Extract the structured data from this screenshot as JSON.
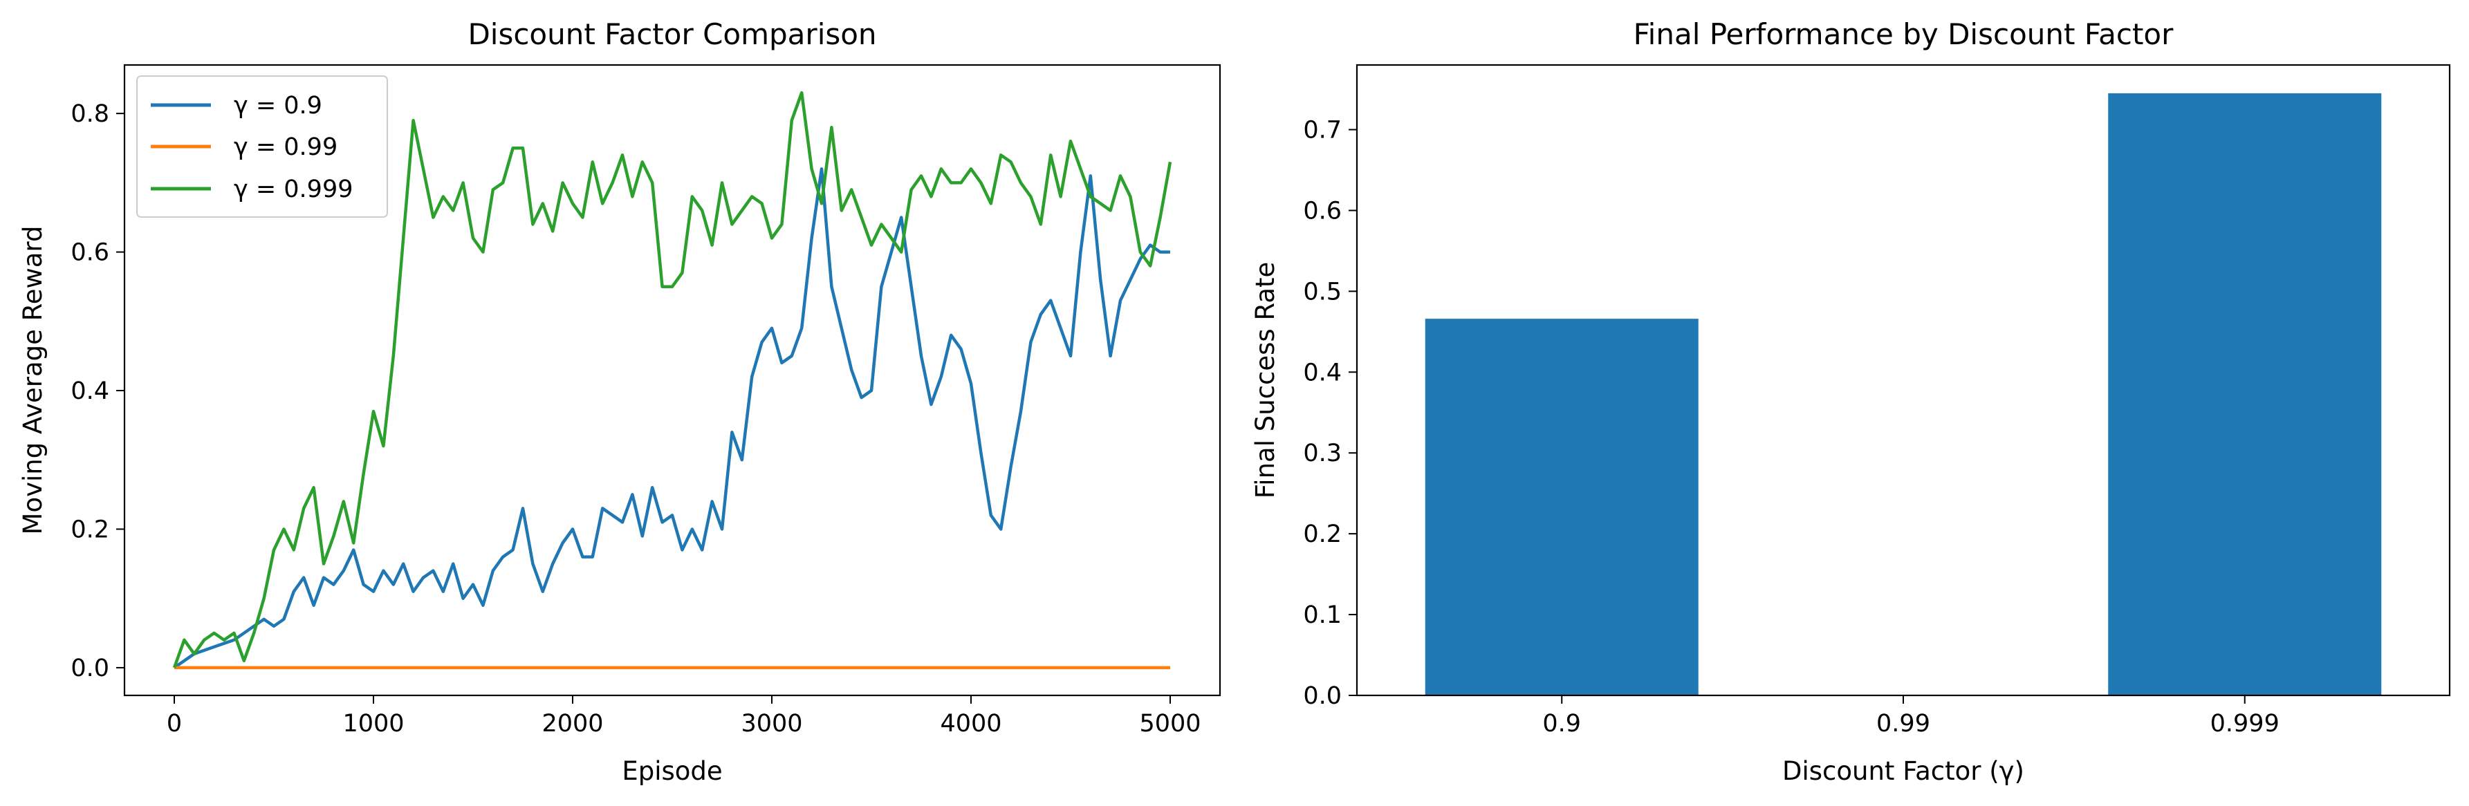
{
  "chart_data": [
    {
      "type": "line",
      "title": "Discount Factor Comparison",
      "xlabel": "Episode",
      "ylabel": "Moving Average Reward",
      "xlim": [
        -250,
        5250
      ],
      "ylim": [
        -0.04,
        0.87
      ],
      "x_ticks": [
        0,
        1000,
        2000,
        3000,
        4000,
        5000
      ],
      "x_tick_labels": [
        "0",
        "1000",
        "2000",
        "3000",
        "4000",
        "5000"
      ],
      "y_ticks": [
        0.0,
        0.2,
        0.4,
        0.6,
        0.8
      ],
      "y_tick_labels": [
        "0.0",
        "0.2",
        "0.4",
        "0.6",
        "0.8"
      ],
      "grid": false,
      "legend_position": "upper-left",
      "series": [
        {
          "name": "γ = 0.9",
          "color": "#1f77b4",
          "x": [
            0,
            100,
            200,
            300,
            400,
            450,
            500,
            550,
            600,
            650,
            700,
            750,
            800,
            850,
            900,
            950,
            1000,
            1050,
            1100,
            1150,
            1200,
            1250,
            1300,
            1350,
            1400,
            1450,
            1500,
            1550,
            1600,
            1650,
            1700,
            1750,
            1800,
            1850,
            1900,
            1950,
            2000,
            2050,
            2100,
            2150,
            2200,
            2250,
            2300,
            2350,
            2400,
            2450,
            2500,
            2550,
            2600,
            2650,
            2700,
            2750,
            2800,
            2850,
            2900,
            2950,
            3000,
            3050,
            3100,
            3150,
            3200,
            3250,
            3300,
            3350,
            3400,
            3450,
            3500,
            3550,
            3600,
            3650,
            3700,
            3750,
            3800,
            3850,
            3900,
            3950,
            4000,
            4050,
            4100,
            4150,
            4200,
            4250,
            4300,
            4350,
            4400,
            4450,
            4500,
            4550,
            4600,
            4650,
            4700,
            4750,
            4800,
            4850,
            4900,
            4950,
            5000
          ],
          "values": [
            0.0,
            0.02,
            0.03,
            0.04,
            0.06,
            0.07,
            0.06,
            0.07,
            0.11,
            0.13,
            0.09,
            0.13,
            0.12,
            0.14,
            0.17,
            0.12,
            0.11,
            0.14,
            0.12,
            0.15,
            0.11,
            0.13,
            0.14,
            0.11,
            0.15,
            0.1,
            0.12,
            0.09,
            0.14,
            0.16,
            0.17,
            0.23,
            0.15,
            0.11,
            0.15,
            0.18,
            0.2,
            0.16,
            0.16,
            0.23,
            0.22,
            0.21,
            0.25,
            0.19,
            0.26,
            0.21,
            0.22,
            0.17,
            0.2,
            0.17,
            0.24,
            0.2,
            0.34,
            0.3,
            0.42,
            0.47,
            0.49,
            0.44,
            0.45,
            0.49,
            0.62,
            0.72,
            0.55,
            0.49,
            0.43,
            0.39,
            0.4,
            0.55,
            0.6,
            0.65,
            0.55,
            0.45,
            0.38,
            0.42,
            0.48,
            0.46,
            0.41,
            0.31,
            0.22,
            0.2,
            0.29,
            0.37,
            0.47,
            0.51,
            0.53,
            0.49,
            0.45,
            0.6,
            0.71,
            0.56,
            0.45,
            0.53,
            0.56,
            0.59,
            0.61,
            0.6,
            0.6
          ]
        },
        {
          "name": "γ = 0.99",
          "color": "#ff7f0e",
          "x": [
            0,
            5000
          ],
          "values": [
            0.0,
            0.0
          ]
        },
        {
          "name": "γ = 0.999",
          "color": "#2ca02c",
          "x": [
            0,
            50,
            100,
            150,
            200,
            250,
            300,
            350,
            400,
            450,
            500,
            550,
            600,
            650,
            700,
            750,
            800,
            850,
            900,
            950,
            1000,
            1050,
            1100,
            1150,
            1200,
            1250,
            1300,
            1350,
            1400,
            1450,
            1500,
            1550,
            1600,
            1650,
            1700,
            1750,
            1800,
            1850,
            1900,
            1950,
            2000,
            2050,
            2100,
            2150,
            2200,
            2250,
            2300,
            2350,
            2400,
            2450,
            2500,
            2550,
            2600,
            2650,
            2700,
            2750,
            2800,
            2850,
            2900,
            2950,
            3000,
            3050,
            3100,
            3150,
            3200,
            3250,
            3300,
            3350,
            3400,
            3450,
            3500,
            3550,
            3600,
            3650,
            3700,
            3750,
            3800,
            3850,
            3900,
            3950,
            4000,
            4050,
            4100,
            4150,
            4200,
            4250,
            4300,
            4350,
            4400,
            4450,
            4500,
            4550,
            4600,
            4650,
            4700,
            4750,
            4800,
            4850,
            4900,
            4950,
            5000
          ],
          "values": [
            0.0,
            0.04,
            0.02,
            0.04,
            0.05,
            0.04,
            0.05,
            0.01,
            0.05,
            0.1,
            0.17,
            0.2,
            0.17,
            0.23,
            0.26,
            0.15,
            0.19,
            0.24,
            0.18,
            0.28,
            0.37,
            0.32,
            0.45,
            0.62,
            0.79,
            0.72,
            0.65,
            0.68,
            0.66,
            0.7,
            0.62,
            0.6,
            0.69,
            0.7,
            0.75,
            0.75,
            0.64,
            0.67,
            0.63,
            0.7,
            0.67,
            0.65,
            0.73,
            0.67,
            0.7,
            0.74,
            0.68,
            0.73,
            0.7,
            0.55,
            0.55,
            0.57,
            0.68,
            0.66,
            0.61,
            0.7,
            0.64,
            0.66,
            0.68,
            0.67,
            0.62,
            0.64,
            0.79,
            0.83,
            0.72,
            0.67,
            0.78,
            0.66,
            0.69,
            0.65,
            0.61,
            0.64,
            0.62,
            0.6,
            0.69,
            0.71,
            0.68,
            0.72,
            0.7,
            0.7,
            0.72,
            0.7,
            0.67,
            0.74,
            0.73,
            0.7,
            0.68,
            0.64,
            0.74,
            0.68,
            0.76,
            0.72,
            0.68,
            0.67,
            0.66,
            0.71,
            0.68,
            0.6,
            0.58,
            0.65,
            0.73
          ]
        }
      ]
    },
    {
      "type": "bar",
      "title": "Final Performance by Discount Factor",
      "xlabel": "Discount Factor (γ)",
      "ylabel": "Final Success Rate",
      "categories": [
        "0.9",
        "0.99",
        "0.999"
      ],
      "values": [
        0.466,
        0.0,
        0.745
      ],
      "color": "#1f77b4",
      "ylim": [
        0.0,
        0.78
      ],
      "y_ticks": [
        0.0,
        0.1,
        0.2,
        0.3,
        0.4,
        0.5,
        0.6,
        0.7
      ],
      "y_tick_labels": [
        "0.0",
        "0.1",
        "0.2",
        "0.3",
        "0.4",
        "0.5",
        "0.6",
        "0.7"
      ],
      "grid": false
    }
  ]
}
